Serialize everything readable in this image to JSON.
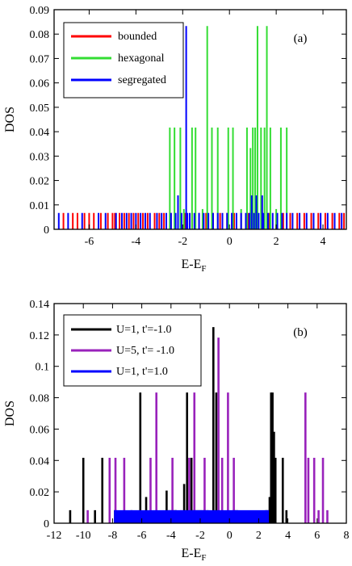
{
  "chart_data": [
    {
      "type": "bar",
      "panel_label": "(a)",
      "xlabel": "E-E",
      "xlabel_sub": "F",
      "ylabel": "DOS",
      "xlim": [
        -7.5,
        5
      ],
      "ylim": [
        0,
        0.09
      ],
      "xticks": [
        "-6",
        "-4",
        "-2",
        "0",
        "2",
        "4"
      ],
      "yticks": [
        "0",
        "0.01",
        "0.02",
        "0.03",
        "0.04",
        "0.05",
        "0.06",
        "0.07",
        "0.08",
        "0.09"
      ],
      "legend_position": "top-left",
      "series": [
        {
          "name": "bounded",
          "color": "#ff0000",
          "x": [
            -7.1,
            -6.7,
            -6.5,
            -6.2,
            -6.0,
            -5.8,
            -5.5,
            -5.2,
            -5.0,
            -4.9,
            -4.7,
            -4.5,
            -4.3,
            -4.1,
            -3.9,
            -3.7,
            -3.5,
            -3.2,
            -3.0,
            -2.8,
            -2.5,
            -2.2,
            -1.9,
            -1.6,
            -1.3,
            -1.0,
            -0.7,
            -0.4,
            -0.1,
            0.2,
            0.5,
            0.8,
            1.1,
            1.4,
            1.7,
            2.0,
            2.3,
            2.6,
            2.9,
            3.2,
            3.5,
            3.8,
            4.1,
            4.4,
            4.7,
            4.9
          ],
          "y": [
            0.0067,
            0.0067,
            0.0067,
            0.0067,
            0.0067,
            0.0067,
            0.0067,
            0.0067,
            0.0067,
            0.0067,
            0.0067,
            0.0067,
            0.0067,
            0.0067,
            0.0067,
            0.0067,
            0.0067,
            0.0067,
            0.0067,
            0.0067,
            0.0067,
            0.0067,
            0.0067,
            0.0067,
            0.0067,
            0.0067,
            0.0067,
            0.0067,
            0.0067,
            0.0067,
            0.0067,
            0.0067,
            0.0067,
            0.0067,
            0.0067,
            0.0067,
            0.0067,
            0.0067,
            0.0067,
            0.0067,
            0.0067,
            0.0067,
            0.0067,
            0.0067,
            0.0067,
            0.0067
          ]
        },
        {
          "name": "hexagonal",
          "color": "#33dd33",
          "x": [
            -2.55,
            -2.35,
            -2.1,
            -1.95,
            -1.6,
            -1.45,
            -1.15,
            -0.95,
            -0.75,
            -0.5,
            -0.05,
            0.15,
            0.5,
            0.75,
            0.9,
            1.0,
            1.1,
            1.2,
            1.35,
            1.5,
            1.6,
            1.75,
            2.0,
            2.2,
            2.45
          ],
          "y": [
            0.0417,
            0.0417,
            0.0417,
            0.0083,
            0.0417,
            0.0417,
            0.0083,
            0.0833,
            0.0417,
            0.0417,
            0.0417,
            0.0417,
            0.0083,
            0.0417,
            0.0333,
            0.0417,
            0.0417,
            0.0833,
            0.0417,
            0.0417,
            0.0833,
            0.0417,
            0.0083,
            0.0417,
            0.0417
          ]
        },
        {
          "name": "segregated",
          "color": "#0000ff",
          "x": [
            -2.2,
            -1.85,
            0.95,
            1.15,
            1.4,
            -7.3,
            -6.9,
            -6.3,
            -5.6,
            -5.3,
            -4.85,
            -4.6,
            -4.4,
            -4.2,
            -4.0,
            -3.8,
            -3.6,
            -3.4,
            -3.1,
            -2.9,
            -2.7,
            -2.5,
            -2.3,
            -2.05,
            -1.8,
            -1.7,
            -1.5,
            -1.3,
            -1.1,
            -0.9,
            -0.7,
            -0.5,
            -0.3,
            -0.1,
            0.1,
            0.3,
            0.5,
            0.7,
            0.85,
            1.05,
            1.25,
            1.45,
            1.65,
            1.85,
            2.05,
            2.25,
            2.45,
            2.7,
            3.0,
            3.3,
            3.6,
            3.9,
            4.2,
            4.5,
            4.8
          ],
          "y": [
            0.0139,
            0.0833,
            0.0139,
            0.0139,
            0.0139,
            0.0067,
            0.0067,
            0.0067,
            0.0067,
            0.0067,
            0.0067,
            0.0067,
            0.0067,
            0.0067,
            0.0067,
            0.0067,
            0.0067,
            0.0067,
            0.0067,
            0.0067,
            0.0067,
            0.0067,
            0.0067,
            0.0067,
            0.0067,
            0.0067,
            0.0067,
            0.0067,
            0.0067,
            0.0067,
            0.0067,
            0.0067,
            0.0067,
            0.0067,
            0.0067,
            0.0067,
            0.0067,
            0.0067,
            0.0067,
            0.0067,
            0.0067,
            0.0067,
            0.0067,
            0.0067,
            0.0067,
            0.0067,
            0.0067,
            0.0067,
            0.0067,
            0.0067,
            0.0067,
            0.0067,
            0.0067,
            0.0067,
            0.0067
          ]
        }
      ]
    },
    {
      "type": "bar",
      "panel_label": "(b)",
      "xlabel": "E-E",
      "xlabel_sub": "F",
      "ylabel": "DOS",
      "xlim": [
        -12,
        8
      ],
      "ylim": [
        0,
        0.14
      ],
      "xticks": [
        "-12",
        "-10",
        "-8",
        "-6",
        "-4",
        "-2",
        "0",
        "2",
        "4",
        "6",
        "8"
      ],
      "yticks": [
        "0",
        "0.02",
        "0.04",
        "0.06",
        "0.08",
        "0.1",
        "0.12",
        "0.14"
      ],
      "legend_position": "top-left",
      "series": [
        {
          "name": "U=1, t'=-1.0",
          "color": "#000000",
          "x": [
            -10.9,
            -10.0,
            -9.2,
            -8.7,
            -6.7,
            -6.1,
            -5.7,
            -4.3,
            -3.7,
            -3.1,
            -2.9,
            -2.6,
            -1.5,
            -1.1,
            -0.9,
            2.5,
            2.6,
            2.75,
            2.85,
            2.95,
            3.05,
            3.15,
            3.65,
            3.9
          ],
          "y": [
            0.0083,
            0.0417,
            0.0083,
            0.0417,
            0.0083,
            0.0833,
            0.0167,
            0.0208,
            0.0083,
            0.025,
            0.0833,
            0.0417,
            0.0083,
            0.125,
            0.0833,
            0.0083,
            0.0083,
            0.0167,
            0.0833,
            0.0833,
            0.0583,
            0.0417,
            0.0417,
            0.0083
          ],
          "seg_ranges": [
            [
              -7.9,
              -7.7
            ],
            [
              -4.2,
              -3.6
            ],
            [
              -2.6,
              -1.6
            ],
            [
              0.2,
              0.6
            ]
          ],
          "seg_height": 0.0083
        },
        {
          "name": "U=5, t'= -1.0",
          "color": "#9922bb",
          "x": [
            -9.7,
            -8.2,
            -7.8,
            -7.2,
            -5.4,
            -5.0,
            -3.9,
            -3.3,
            -2.75,
            -2.4,
            -1.7,
            -0.75,
            -0.5,
            -0.1,
            0.3,
            5.2,
            5.4,
            5.8,
            6.1,
            6.4,
            6.7
          ],
          "y": [
            0.0083,
            0.0417,
            0.0417,
            0.0417,
            0.0417,
            0.0833,
            0.0417,
            0.0083,
            0.0417,
            0.0833,
            0.0417,
            0.1183,
            0.0417,
            0.0833,
            0.0417,
            0.0833,
            0.0417,
            0.0417,
            0.0083,
            0.0417,
            0.0083
          ],
          "seg_ranges": [],
          "seg_height": 0
        },
        {
          "name": "U=1, t'=1.0",
          "color": "#0000ff",
          "x": [],
          "y": [],
          "seg_ranges": [
            [
              -7.9,
              2.7
            ]
          ],
          "seg_height": 0.0083
        }
      ]
    }
  ]
}
